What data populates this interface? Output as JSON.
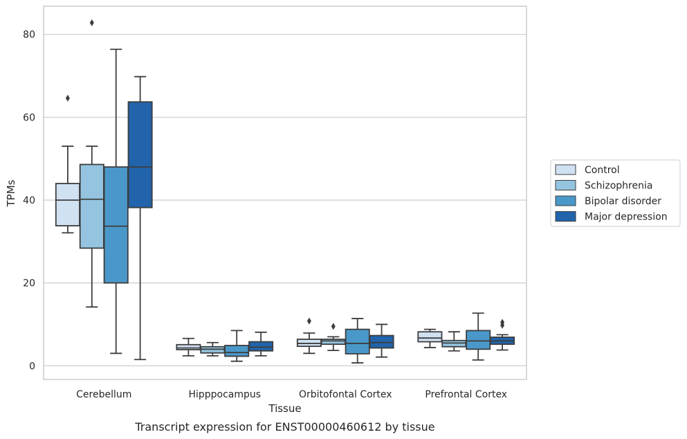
{
  "chart_data": {
    "type": "box",
    "title": "",
    "caption": "Transcript expression for ENST00000460612 by tissue",
    "xlabel": "Tissue",
    "ylabel": "TPMs",
    "ylim": [
      -3.3,
      86.8
    ],
    "yticks": [
      0,
      20,
      40,
      60,
      80
    ],
    "grid": "horizontal",
    "legend_position": "right",
    "categories": [
      "Cerebellum",
      "Hipppocampus",
      "Orbitofontal Cortex",
      "Prefrontal Cortex"
    ],
    "series": [
      {
        "name": "Control",
        "color": "#d0e1f2",
        "boxes": [
          {
            "whisker_low": 32.1,
            "q1": 33.8,
            "median": 40.0,
            "q3": 44.0,
            "whisker_high": 53.0,
            "outliers": [
              64.6
            ]
          },
          {
            "whisker_low": 2.4,
            "q1": 3.9,
            "median": 4.3,
            "q3": 5.1,
            "whisker_high": 6.6,
            "outliers": []
          },
          {
            "whisker_low": 3.0,
            "q1": 4.7,
            "median": 5.4,
            "q3": 6.4,
            "whisker_high": 7.9,
            "outliers": [
              10.8
            ]
          },
          {
            "whisker_low": 4.4,
            "q1": 5.8,
            "median": 6.7,
            "q3": 8.2,
            "whisker_high": 8.8,
            "outliers": []
          }
        ]
      },
      {
        "name": "Schizophrenia",
        "color": "#94c4df",
        "boxes": [
          {
            "whisker_low": 14.2,
            "q1": 28.4,
            "median": 40.2,
            "q3": 48.6,
            "whisker_high": 53.0,
            "outliers": [
              82.8
            ]
          },
          {
            "whisker_low": 2.4,
            "q1": 3.1,
            "median": 4.0,
            "q3": 4.6,
            "whisker_high": 5.6,
            "outliers": []
          },
          {
            "whisker_low": 3.7,
            "q1": 5.2,
            "median": 6.0,
            "q3": 6.4,
            "whisker_high": 7.0,
            "outliers": [
              9.5
            ]
          },
          {
            "whisker_low": 3.6,
            "q1": 4.6,
            "median": 5.5,
            "q3": 6.1,
            "whisker_high": 8.2,
            "outliers": []
          }
        ]
      },
      {
        "name": "Bipolar disorder",
        "color": "#4a98c9",
        "boxes": [
          {
            "whisker_low": 3.0,
            "q1": 20.0,
            "median": 33.7,
            "q3": 48.0,
            "whisker_high": 76.4,
            "outliers": []
          },
          {
            "whisker_low": 1.1,
            "q1": 2.3,
            "median": 3.2,
            "q3": 4.9,
            "whisker_high": 8.5,
            "outliers": []
          },
          {
            "whisker_low": 0.7,
            "q1": 2.9,
            "median": 5.4,
            "q3": 8.8,
            "whisker_high": 11.4,
            "outliers": []
          },
          {
            "whisker_low": 1.4,
            "q1": 4.0,
            "median": 6.0,
            "q3": 8.5,
            "whisker_high": 12.7,
            "outliers": []
          }
        ]
      },
      {
        "name": "Major depression",
        "color": "#2164ab",
        "boxes": [
          {
            "whisker_low": 1.5,
            "q1": 38.2,
            "median": 48.0,
            "q3": 63.7,
            "whisker_high": 69.8,
            "outliers": []
          },
          {
            "whisker_low": 2.4,
            "q1": 3.6,
            "median": 4.5,
            "q3": 5.8,
            "whisker_high": 8.1,
            "outliers": []
          },
          {
            "whisker_low": 2.1,
            "q1": 4.3,
            "median": 5.6,
            "q3": 7.3,
            "whisker_high": 10.0,
            "outliers": []
          },
          {
            "whisker_low": 3.8,
            "q1": 5.2,
            "median": 6.0,
            "q3": 6.9,
            "whisker_high": 7.5,
            "outliers": [
              9.8,
              10.5
            ]
          }
        ]
      }
    ]
  }
}
